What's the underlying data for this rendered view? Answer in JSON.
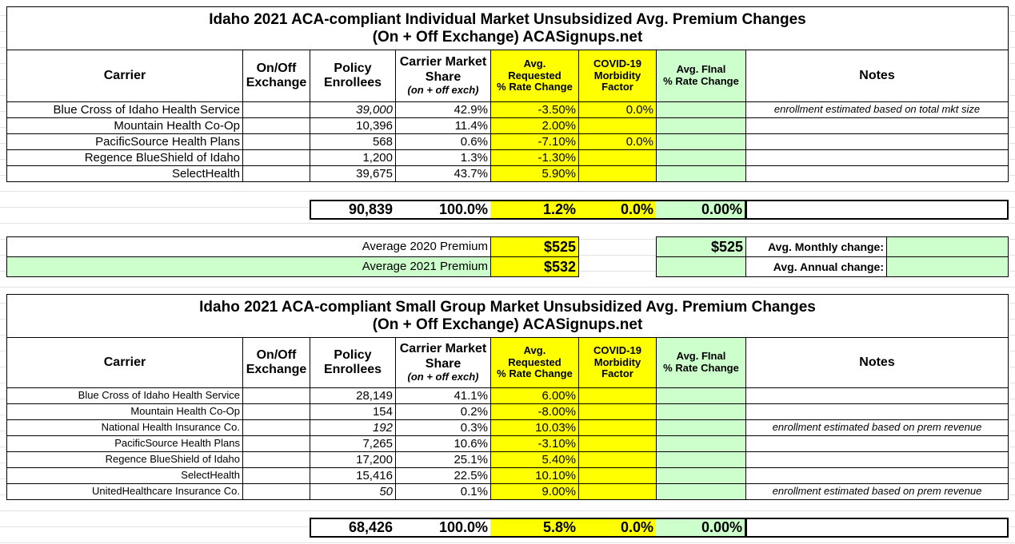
{
  "individual": {
    "title": "Idaho 2021 ACA-compliant Individual Market Unsubsidized Avg. Premium Changes",
    "subtitle": "(On + Off Exchange) ACASignups.net",
    "headers": {
      "carrier": [
        "Carrier"
      ],
      "exchange": [
        "On/Off",
        "Exchange"
      ],
      "enrollees": [
        "Policy",
        "Enrollees"
      ],
      "share": [
        "Carrier Market",
        "Share"
      ],
      "share_note": "(on + off exch)",
      "requested": [
        "Avg.",
        "Requested",
        "% Rate Change"
      ],
      "covid": [
        "COVID-19",
        "Morbidity",
        "Factor"
      ],
      "final": [
        "Avg. FInal",
        "% Rate Change"
      ],
      "notes": [
        "Notes"
      ]
    },
    "rows": [
      {
        "carrier": "Blue Cross of Idaho Health Service",
        "enrollees": "39,000",
        "italic": true,
        "share": "42.9%",
        "requested": "-3.50%",
        "covid": "0.0%",
        "notes": "enrollment estimated based on total mkt size"
      },
      {
        "carrier": "Mountain Health Co-Op",
        "enrollees": "10,396",
        "share": "11.4%",
        "requested": "2.00%"
      },
      {
        "carrier": "PacificSource Health Plans",
        "enrollees": "568",
        "share": "0.6%",
        "requested": "-7.10%",
        "covid": "0.0%"
      },
      {
        "carrier": "Regence BlueShield of Idaho",
        "enrollees": "1,200",
        "share": "1.3%",
        "requested": "-1.30%"
      },
      {
        "carrier": "SelectHealth",
        "enrollees": "39,675",
        "share": "43.7%",
        "requested": "5.90%"
      }
    ],
    "totals": {
      "enrollees": "90,839",
      "share": "100.0%",
      "requested": "1.2%",
      "covid": "0.0%",
      "final": "0.00%"
    },
    "premiums": [
      {
        "label": "Average 2020 Premium",
        "value": "$525",
        "final": "$525",
        "change_label": "Avg. Monthly change:"
      },
      {
        "label": "Average 2021 Premium",
        "value": "$532",
        "change_label": "Avg. Annual change:"
      }
    ]
  },
  "small_group": {
    "title": "Idaho 2021 ACA-compliant Small Group Market Unsubsidized Avg. Premium Changes",
    "subtitle": "(On + Off Exchange) ACASignups.net",
    "headers": {
      "carrier": [
        "Carrier"
      ],
      "exchange": [
        "On/Off",
        "Exchange"
      ],
      "enrollees": [
        "Policy",
        "Enrollees"
      ],
      "share": [
        "Carrier Market",
        "Share"
      ],
      "share_note": "(on + off exch)",
      "requested": [
        "Avg.",
        "Requested",
        "% Rate Change"
      ],
      "covid": [
        "COVID-19",
        "Morbidity",
        "Factor"
      ],
      "final": [
        "Avg. FInal",
        "% Rate Change"
      ],
      "notes": [
        "Notes"
      ]
    },
    "rows": [
      {
        "carrier": "Blue Cross of Idaho Health Service",
        "enrollees": "28,149",
        "share": "41.1%",
        "requested": "6.00%"
      },
      {
        "carrier": "Mountain Health Co-Op",
        "enrollees": "154",
        "share": "0.2%",
        "requested": "-8.00%"
      },
      {
        "carrier": "National Health Insurance Co.",
        "enrollees": "192",
        "italic": true,
        "share": "0.3%",
        "requested": "10.03%",
        "notes": "enrollment estimated based on prem revenue"
      },
      {
        "carrier": "PacificSource Health Plans",
        "enrollees": "7,265",
        "share": "10.6%",
        "requested": "-3.10%"
      },
      {
        "carrier": "Regence BlueShield of Idaho",
        "enrollees": "17,200",
        "share": "25.1%",
        "requested": "5.40%"
      },
      {
        "carrier": "SelectHealth",
        "enrollees": "15,416",
        "share": "22.5%",
        "requested": "10.10%"
      },
      {
        "carrier": "UnitedHealthcare Insurance Co.",
        "enrollees": "50",
        "italic": true,
        "share": "0.1%",
        "requested": "9.00%",
        "notes": "enrollment estimated based on prem revenue"
      }
    ],
    "totals": {
      "enrollees": "68,426",
      "share": "100.0%",
      "requested": "5.8%",
      "covid": "0.0%",
      "final": "0.00%"
    }
  }
}
